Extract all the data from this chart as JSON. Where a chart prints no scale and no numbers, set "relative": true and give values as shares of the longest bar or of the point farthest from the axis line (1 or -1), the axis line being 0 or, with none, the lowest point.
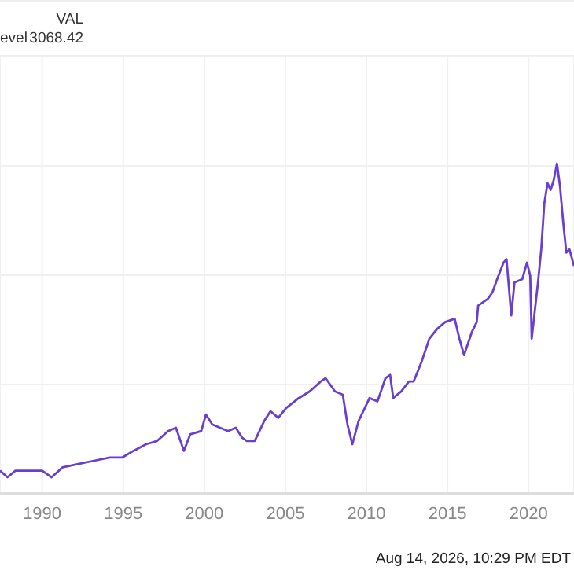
{
  "chart_data": {
    "type": "line",
    "relative": true,
    "grid": true,
    "marker": "none",
    "line_style": "solid",
    "xlim": [
      1987.4,
      2022.8
    ],
    "xticks": [
      1990,
      1995,
      2000,
      2005,
      2010,
      2015,
      2020
    ],
    "annotations": [
      "VAL",
      "evel",
      "3068.42",
      "Aug 14, 2026, 10:29 PM EDT"
    ],
    "series": [
      {
        "color": "#6a3fd0",
        "x": [
          1987.4,
          1987.86,
          1988.35,
          1990.0,
          1990.58,
          1991.26,
          1992.23,
          1993.2,
          1994.17,
          1994.95,
          1995.63,
          1996.41,
          1997.09,
          1997.77,
          1998.25,
          1998.74,
          1999.13,
          1999.81,
          2000.1,
          2000.49,
          2000.97,
          2001.46,
          2001.94,
          2002.33,
          2002.62,
          2003.11,
          2003.69,
          2004.08,
          2004.56,
          2005.05,
          2005.83,
          2006.5,
          2007.18,
          2007.48,
          2008.06,
          2008.54,
          2008.83,
          2009.13,
          2009.51,
          2010.19,
          2010.68,
          2011.17,
          2011.46,
          2011.65,
          2012.14,
          2012.62,
          2012.91,
          2013.4,
          2013.88,
          2014.37,
          2014.85,
          2015.44,
          2015.73,
          2016.02,
          2016.5,
          2016.8,
          2016.89,
          2017.48,
          2017.77,
          2018.06,
          2018.45,
          2018.64,
          2018.93,
          2019.13,
          2019.61,
          2019.9,
          2020.1,
          2020.19,
          2020.58,
          2020.78,
          2020.97,
          2021.17,
          2021.36,
          2021.55,
          2021.75,
          2021.94,
          2022.14,
          2022.33,
          2022.52,
          2022.8
        ],
        "values": [
          0.07,
          0.05,
          0.07,
          0.07,
          0.05,
          0.08,
          0.09,
          0.1,
          0.11,
          0.11,
          0.13,
          0.15,
          0.16,
          0.19,
          0.2,
          0.13,
          0.18,
          0.19,
          0.24,
          0.21,
          0.2,
          0.19,
          0.2,
          0.17,
          0.16,
          0.16,
          0.22,
          0.25,
          0.23,
          0.26,
          0.29,
          0.31,
          0.34,
          0.35,
          0.31,
          0.3,
          0.21,
          0.15,
          0.22,
          0.29,
          0.28,
          0.35,
          0.36,
          0.29,
          0.31,
          0.34,
          0.34,
          0.4,
          0.47,
          0.5,
          0.52,
          0.53,
          0.47,
          0.42,
          0.49,
          0.52,
          0.57,
          0.59,
          0.61,
          0.65,
          0.7,
          0.71,
          0.54,
          0.64,
          0.65,
          0.7,
          0.66,
          0.47,
          0.64,
          0.74,
          0.88,
          0.94,
          0.92,
          0.95,
          1.0,
          0.93,
          0.82,
          0.73,
          0.74,
          0.69
        ]
      }
    ]
  }
}
